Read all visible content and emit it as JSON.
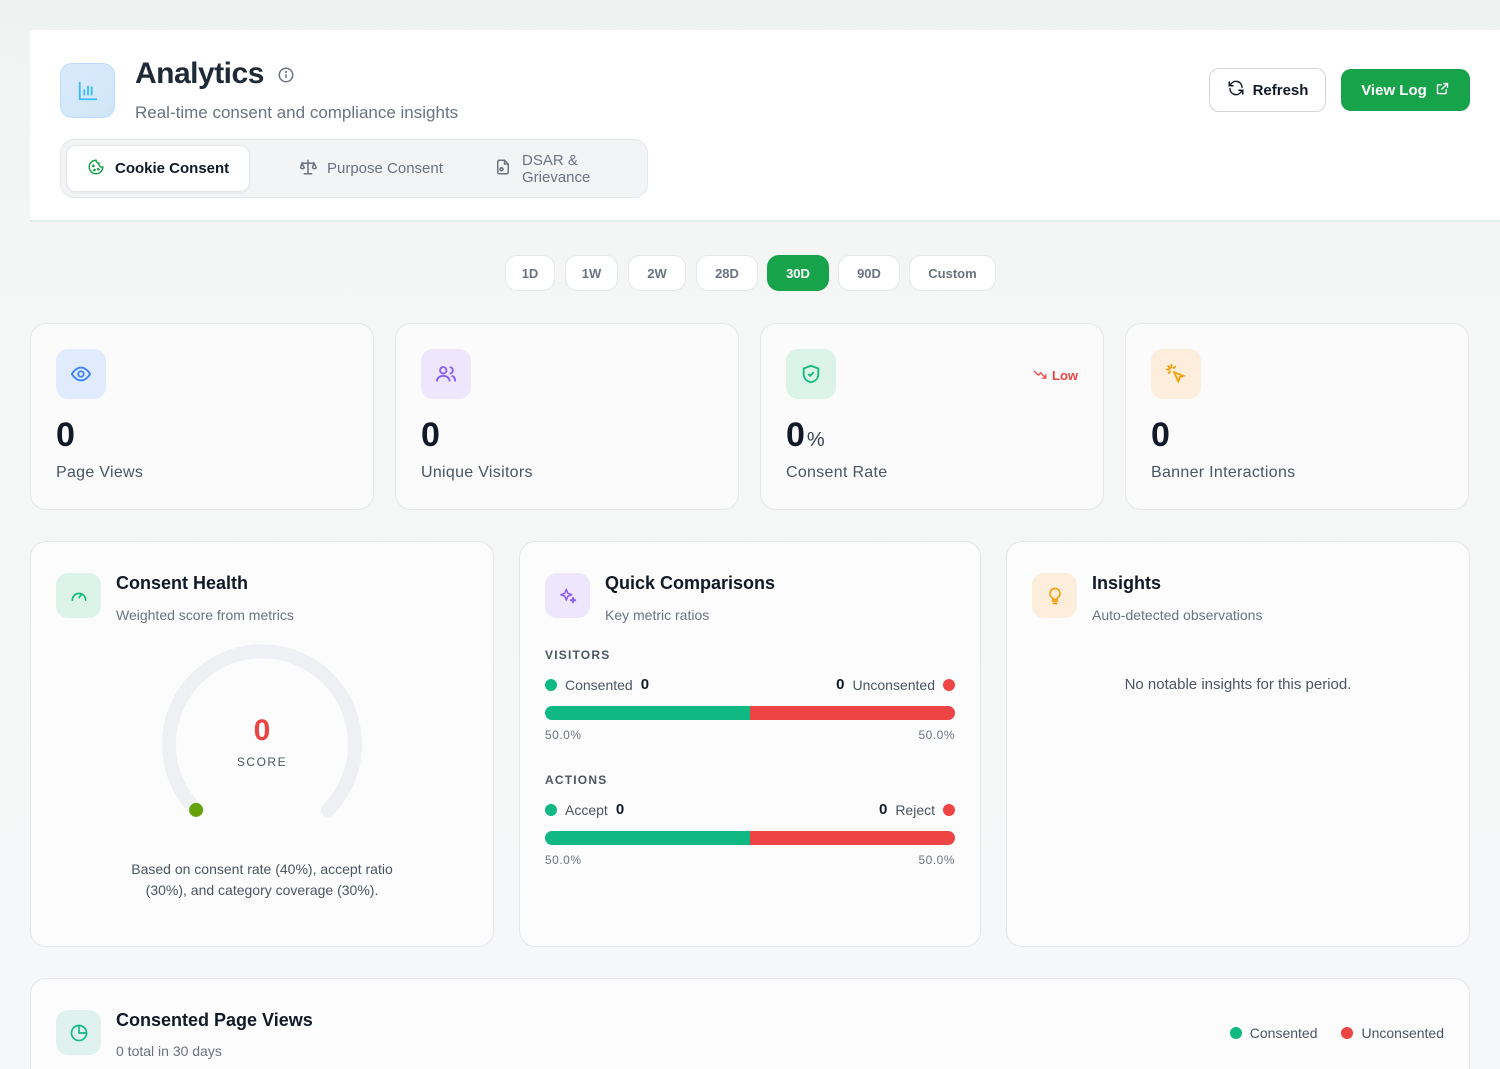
{
  "header": {
    "title": "Analytics",
    "subtitle": "Real-time consent and compliance insights",
    "tabs": [
      {
        "label": "Cookie Consent",
        "icon": "cookie-icon",
        "active": true
      },
      {
        "label": "Purpose Consent",
        "icon": "scale-icon",
        "active": false
      },
      {
        "label": "DSAR & Grievance",
        "icon": "file-icon",
        "active": false
      }
    ],
    "refresh_label": "Refresh",
    "view_log_label": "View Log"
  },
  "ranges": [
    "1D",
    "1W",
    "2W",
    "28D",
    "30D",
    "90D",
    "Custom"
  ],
  "active_range": "30D",
  "stats": [
    {
      "value": "0",
      "unit": "",
      "label": "Page Views",
      "icon": "eye-icon",
      "color": "#3b82f6"
    },
    {
      "value": "0",
      "unit": "",
      "label": "Unique Visitors",
      "icon": "users-icon",
      "color": "#8b5cf6"
    },
    {
      "value": "0",
      "unit": "%",
      "label": "Consent Rate",
      "icon": "shield-check-icon",
      "color": "#10b981",
      "trend": "Low"
    },
    {
      "value": "0",
      "unit": "",
      "label": "Banner Interactions",
      "icon": "pointer-click-icon",
      "color": "#f59e0b"
    }
  ],
  "health": {
    "title": "Consent Health",
    "subtitle": "Weighted score from metrics",
    "score": "0",
    "score_label": "SCORE",
    "note": "Based on consent rate (40%), accept ratio (30%), and category coverage (30%)."
  },
  "comparisons": {
    "title": "Quick Comparisons",
    "subtitle": "Key metric ratios",
    "sections": [
      {
        "label": "VISITORS",
        "left_label": "Consented",
        "left_value": "0",
        "right_label": "Unconsented",
        "right_value": "0",
        "left_pct": "50.0%",
        "right_pct": "50.0%",
        "left_fraction": 0.5
      },
      {
        "label": "ACTIONS",
        "left_label": "Accept",
        "left_value": "0",
        "right_label": "Reject",
        "right_value": "0",
        "left_pct": "50.0%",
        "right_pct": "50.0%",
        "left_fraction": 0.5
      }
    ]
  },
  "insights": {
    "title": "Insights",
    "subtitle": "Auto-detected observations",
    "empty": "No notable insights for this period."
  },
  "page_views_panel": {
    "title": "Consented Page Views",
    "subtitle": "0 total in 30 days",
    "legend": [
      "Consented",
      "Unconsented"
    ]
  },
  "colors": {
    "accent": "#16a34a",
    "consented": "#10b981",
    "unconsented": "#ef4444"
  }
}
